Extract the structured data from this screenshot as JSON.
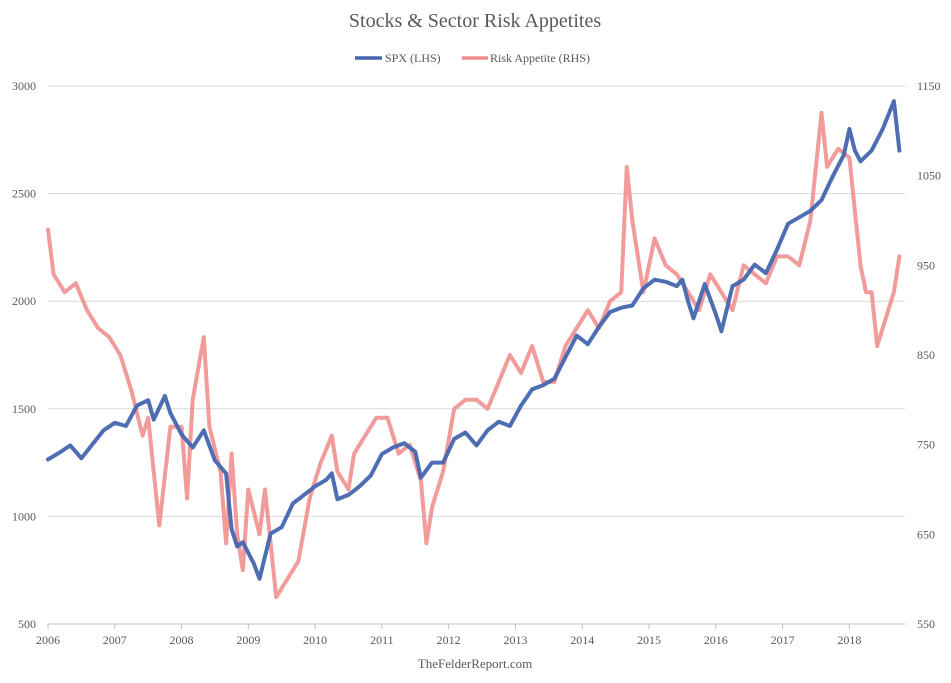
{
  "chart_data": {
    "type": "line",
    "title": "Stocks & Sector Risk Appetites",
    "source_note": "TheFelderReport.com",
    "xlabel": "",
    "ylabel": "",
    "x_ticks": [
      "2006",
      "2007",
      "2008",
      "2009",
      "2010",
      "2011",
      "2012",
      "2013",
      "2014",
      "2015",
      "2016",
      "2017",
      "2018"
    ],
    "xlim": [
      "2006-01",
      "2018-11"
    ],
    "ylim_left": [
      500,
      3000
    ],
    "ylim_right": [
      550,
      1150
    ],
    "y_ticks_left": [
      "500",
      "1000",
      "1500",
      "2000",
      "2500",
      "3000"
    ],
    "y_ticks_right": [
      "550",
      "650",
      "750",
      "850",
      "950",
      "1050",
      "1150"
    ],
    "grid": "horizontal",
    "legend_position": "top-center",
    "series": [
      {
        "name": "SPX (LHS)",
        "axis": "left",
        "color": "#4466b0",
        "x": [
          "2006-01",
          "2006-03",
          "2006-05",
          "2006-07",
          "2006-09",
          "2006-11",
          "2007-01",
          "2007-03",
          "2007-05",
          "2007-07",
          "2007-08",
          "2007-10",
          "2007-11",
          "2008-01",
          "2008-03",
          "2008-05",
          "2008-07",
          "2008-09",
          "2008-10",
          "2008-11",
          "2008-12",
          "2009-02",
          "2009-03",
          "2009-05",
          "2009-07",
          "2009-09",
          "2009-11",
          "2010-01",
          "2010-03",
          "2010-04",
          "2010-05",
          "2010-07",
          "2010-09",
          "2010-11",
          "2011-01",
          "2011-03",
          "2011-05",
          "2011-07",
          "2011-08",
          "2011-10",
          "2011-12",
          "2012-02",
          "2012-04",
          "2012-06",
          "2012-08",
          "2012-10",
          "2012-12",
          "2013-02",
          "2013-04",
          "2013-06",
          "2013-08",
          "2013-10",
          "2013-12",
          "2014-02",
          "2014-04",
          "2014-06",
          "2014-08",
          "2014-10",
          "2014-12",
          "2015-02",
          "2015-04",
          "2015-06",
          "2015-07",
          "2015-08",
          "2015-09",
          "2015-11",
          "2016-01",
          "2016-02",
          "2016-04",
          "2016-06",
          "2016-08",
          "2016-10",
          "2016-12",
          "2017-02",
          "2017-04",
          "2017-06",
          "2017-08",
          "2017-10",
          "2017-12",
          "2018-01",
          "2018-02",
          "2018-03",
          "2018-05",
          "2018-07",
          "2018-09",
          "2018-10"
        ],
        "y": [
          1265,
          1295,
          1330,
          1270,
          1335,
          1400,
          1435,
          1420,
          1515,
          1540,
          1450,
          1560,
          1480,
          1380,
          1320,
          1400,
          1260,
          1200,
          940,
          860,
          880,
          780,
          710,
          920,
          950,
          1060,
          1100,
          1140,
          1170,
          1200,
          1080,
          1100,
          1140,
          1190,
          1290,
          1320,
          1340,
          1300,
          1180,
          1250,
          1250,
          1360,
          1390,
          1330,
          1400,
          1440,
          1420,
          1515,
          1590,
          1610,
          1640,
          1740,
          1840,
          1800,
          1880,
          1950,
          1970,
          1980,
          2060,
          2100,
          2090,
          2070,
          2100,
          2000,
          1920,
          2080,
          1940,
          1860,
          2070,
          2100,
          2170,
          2130,
          2240,
          2360,
          2390,
          2420,
          2470,
          2580,
          2680,
          2800,
          2700,
          2650,
          2700,
          2800,
          2930,
          2700
        ]
      },
      {
        "name": "Risk Appetite (RHS)",
        "axis": "right",
        "color": "#f08a8a",
        "x": [
          "2006-01",
          "2006-02",
          "2006-04",
          "2006-06",
          "2006-08",
          "2006-10",
          "2006-12",
          "2007-02",
          "2007-04",
          "2007-06",
          "2007-07",
          "2007-08",
          "2007-09",
          "2007-11",
          "2008-01",
          "2008-02",
          "2008-03",
          "2008-05",
          "2008-06",
          "2008-08",
          "2008-09",
          "2008-10",
          "2008-11",
          "2008-12",
          "2009-01",
          "2009-03",
          "2009-04",
          "2009-05",
          "2009-06",
          "2009-08",
          "2009-10",
          "2009-12",
          "2010-02",
          "2010-04",
          "2010-05",
          "2010-07",
          "2010-08",
          "2010-10",
          "2010-12",
          "2011-02",
          "2011-04",
          "2011-06",
          "2011-08",
          "2011-09",
          "2011-10",
          "2011-12",
          "2012-02",
          "2012-04",
          "2012-06",
          "2012-08",
          "2012-10",
          "2012-12",
          "2013-02",
          "2013-04",
          "2013-06",
          "2013-08",
          "2013-10",
          "2013-12",
          "2014-02",
          "2014-04",
          "2014-06",
          "2014-08",
          "2014-09",
          "2014-10",
          "2014-12",
          "2015-02",
          "2015-04",
          "2015-06",
          "2015-08",
          "2015-10",
          "2015-12",
          "2016-02",
          "2016-04",
          "2016-06",
          "2016-08",
          "2016-10",
          "2016-12",
          "2017-02",
          "2017-04",
          "2017-06",
          "2017-08",
          "2017-09",
          "2017-11",
          "2018-01",
          "2018-03",
          "2018-04",
          "2018-05",
          "2018-06",
          "2018-07",
          "2018-08",
          "2018-09",
          "2018-10"
        ],
        "y": [
          990,
          940,
          920,
          930,
          900,
          880,
          870,
          850,
          810,
          760,
          780,
          720,
          660,
          770,
          770,
          690,
          800,
          870,
          770,
          720,
          640,
          740,
          650,
          610,
          700,
          650,
          700,
          640,
          580,
          600,
          620,
          690,
          730,
          760,
          720,
          700,
          740,
          760,
          780,
          780,
          740,
          750,
          710,
          640,
          680,
          720,
          790,
          800,
          800,
          790,
          820,
          850,
          830,
          860,
          820,
          820,
          860,
          880,
          900,
          880,
          910,
          920,
          1060,
          1000,
          920,
          980,
          950,
          940,
          920,
          900,
          940,
          920,
          900,
          950,
          940,
          930,
          960,
          960,
          950,
          1000,
          1120,
          1060,
          1080,
          1070,
          950,
          920,
          920,
          860,
          880,
          900,
          920,
          960
        ]
      }
    ]
  }
}
